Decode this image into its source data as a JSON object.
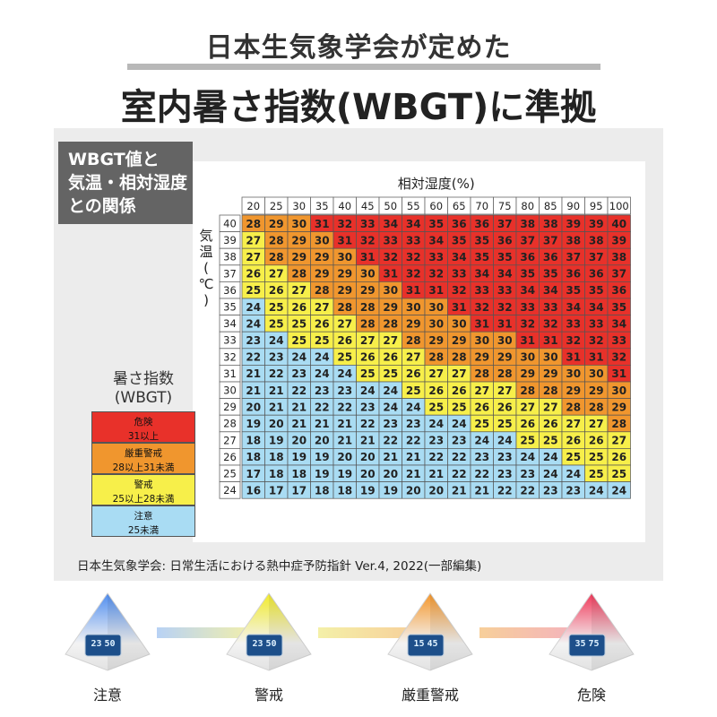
{
  "header": {
    "top": "日本生気象学会が定めた",
    "main": "室内暑さ指数(WBGT)に準拠"
  },
  "tag": {
    "line1": "WBGT値と",
    "line2": "気温・相対湿度",
    "line3": "との関係"
  },
  "legend": {
    "title1": "暑さ指数",
    "title2": "(WBGT)",
    "levels": [
      {
        "name": "危険",
        "range": "31以上",
        "color": "#e8312a"
      },
      {
        "name": "厳重警戒",
        "range": "28以上31未満",
        "color": "#f0962e"
      },
      {
        "name": "警戒",
        "range": "25以上28未満",
        "color": "#f7ef4a"
      },
      {
        "name": "注意",
        "range": "25未満",
        "color": "#a9dcf3"
      }
    ]
  },
  "chart_data": {
    "type": "heatmap",
    "xlabel": "相対湿度(%)",
    "ylabel": "気温(℃)",
    "x": [
      20,
      25,
      30,
      35,
      40,
      45,
      50,
      55,
      60,
      65,
      70,
      75,
      80,
      85,
      90,
      95,
      100
    ],
    "y": [
      40,
      39,
      38,
      37,
      36,
      35,
      34,
      33,
      32,
      31,
      30,
      29,
      28,
      27,
      26,
      25,
      24
    ],
    "values": [
      [
        28,
        29,
        30,
        31,
        32,
        33,
        34,
        34,
        35,
        36,
        36,
        37,
        38,
        38,
        39,
        39,
        40
      ],
      [
        27,
        28,
        29,
        30,
        31,
        32,
        33,
        33,
        34,
        35,
        35,
        36,
        37,
        37,
        38,
        38,
        39
      ],
      [
        27,
        28,
        29,
        29,
        30,
        31,
        32,
        32,
        33,
        34,
        35,
        35,
        36,
        36,
        37,
        37,
        38
      ],
      [
        26,
        27,
        28,
        29,
        29,
        30,
        31,
        32,
        32,
        33,
        34,
        34,
        35,
        35,
        36,
        36,
        37
      ],
      [
        25,
        26,
        27,
        28,
        29,
        29,
        30,
        31,
        31,
        32,
        33,
        33,
        34,
        34,
        35,
        35,
        36
      ],
      [
        24,
        25,
        26,
        27,
        28,
        28,
        29,
        30,
        30,
        31,
        32,
        32,
        33,
        33,
        34,
        34,
        35
      ],
      [
        24,
        25,
        25,
        26,
        27,
        28,
        28,
        29,
        30,
        30,
        31,
        31,
        32,
        32,
        33,
        33,
        34
      ],
      [
        23,
        24,
        25,
        25,
        26,
        27,
        27,
        28,
        29,
        29,
        30,
        30,
        31,
        31,
        32,
        32,
        33
      ],
      [
        22,
        23,
        24,
        24,
        25,
        26,
        26,
        27,
        28,
        28,
        29,
        29,
        30,
        30,
        31,
        31,
        32
      ],
      [
        21,
        22,
        23,
        24,
        24,
        25,
        25,
        26,
        27,
        27,
        28,
        28,
        29,
        29,
        30,
        30,
        31
      ],
      [
        21,
        21,
        22,
        23,
        23,
        24,
        24,
        25,
        26,
        26,
        27,
        27,
        28,
        28,
        29,
        29,
        30
      ],
      [
        20,
        21,
        21,
        22,
        22,
        23,
        24,
        24,
        25,
        25,
        26,
        26,
        27,
        27,
        28,
        28,
        29
      ],
      [
        19,
        20,
        21,
        21,
        21,
        22,
        23,
        23,
        24,
        24,
        25,
        25,
        26,
        26,
        27,
        27,
        28
      ],
      [
        18,
        19,
        20,
        20,
        21,
        21,
        22,
        22,
        23,
        23,
        24,
        24,
        25,
        25,
        26,
        26,
        27
      ],
      [
        18,
        18,
        19,
        19,
        20,
        20,
        21,
        21,
        22,
        22,
        23,
        23,
        24,
        24,
        25,
        25,
        26
      ],
      [
        17,
        18,
        18,
        19,
        19,
        20,
        20,
        21,
        21,
        22,
        22,
        23,
        23,
        24,
        24,
        25,
        25
      ],
      [
        16,
        17,
        17,
        18,
        18,
        19,
        19,
        20,
        20,
        21,
        21,
        22,
        22,
        23,
        23,
        24,
        24
      ]
    ],
    "thresholds": [
      25,
      28,
      31
    ],
    "colors": [
      "#a9dcf3",
      "#f7ef4a",
      "#f0962e",
      "#e8312a"
    ]
  },
  "source": "日本生気象学会: 日常生活における熱中症予防指針 Ver.4, 2022(一部編集)",
  "devices": [
    {
      "label": "注意",
      "temp": "23",
      "hum": "50",
      "glow": "#4f8df0"
    },
    {
      "label": "警戒",
      "temp": "23",
      "hum": "50",
      "glow": "#f2ea2a"
    },
    {
      "label": "厳重警戒",
      "temp": "15",
      "hum": "45",
      "glow": "#f5962a"
    },
    {
      "label": "危険",
      "temp": "35",
      "hum": "75",
      "glow": "#f0395a"
    }
  ]
}
